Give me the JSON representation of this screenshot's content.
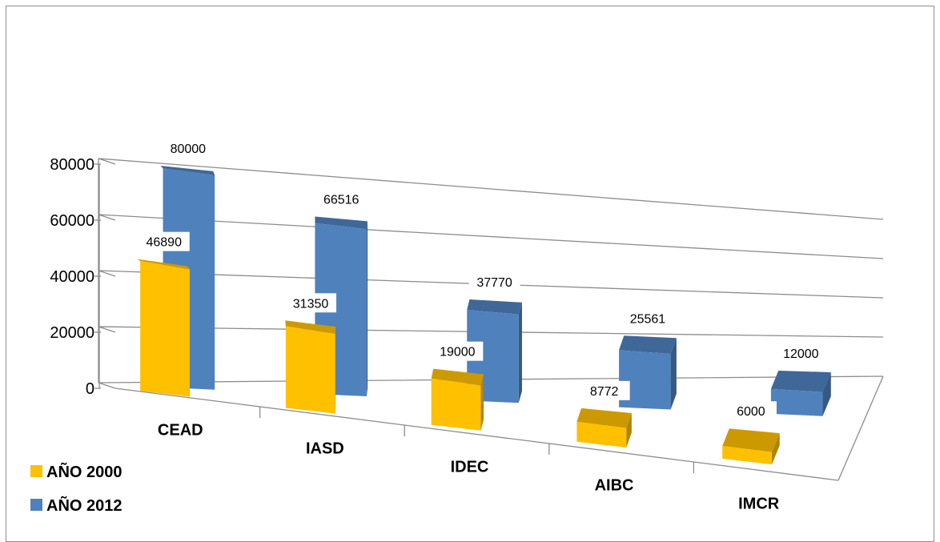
{
  "chart_data": {
    "type": "bar",
    "style": "3d-clustered-column",
    "categories": [
      "CEAD",
      "IASD",
      "IDEC",
      "AIBC",
      "IMCR"
    ],
    "series": [
      {
        "name": "AÑO 2000",
        "values": [
          46890,
          31350,
          19000,
          8772,
          6000
        ],
        "color": "#FFC000"
      },
      {
        "name": "AÑO 2012",
        "values": [
          80000,
          66516,
          37770,
          25561,
          12000
        ],
        "color": "#4F81BD"
      }
    ],
    "yticks": [
      "0",
      "20000",
      "40000",
      "60000",
      "80000"
    ],
    "ylim": [
      0,
      80000
    ],
    "grid": true,
    "legend_position": "bottom-left",
    "data_labels": true
  }
}
